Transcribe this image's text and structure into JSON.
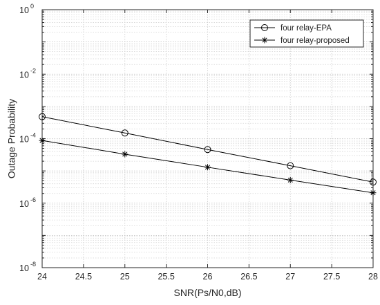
{
  "chart_data": {
    "type": "line",
    "title": "",
    "xlabel": "SNR(Ps/N0,dB)",
    "ylabel": "Outage Probability",
    "xlim": [
      24,
      28
    ],
    "ylim": [
      1e-08,
      1
    ],
    "yscale": "log",
    "grid": true,
    "minor_grid": true,
    "legend_position": "top-right",
    "x_ticks": [
      "24",
      "24.5",
      "25",
      "25.5",
      "26",
      "26.5",
      "27",
      "27.5",
      "28"
    ],
    "y_ticks": [
      {
        "base": "10",
        "exp": "-8"
      },
      {
        "base": "10",
        "exp": "-6"
      },
      {
        "base": "10",
        "exp": "-4"
      },
      {
        "base": "10",
        "exp": "-2"
      },
      {
        "base": "10",
        "exp": "0"
      }
    ],
    "x": [
      24,
      25,
      26,
      27,
      28
    ],
    "series": [
      {
        "name": "four relay-EPA",
        "marker": "circle",
        "color": "#000000",
        "values": [
          0.00048,
          0.00015,
          4.6e-05,
          1.45e-05,
          4.5e-06
        ]
      },
      {
        "name": "four relay-proposed",
        "marker": "asterisk",
        "color": "#000000",
        "values": [
          8.8e-05,
          3.3e-05,
          1.3e-05,
          5.2e-06,
          2.1e-06
        ]
      }
    ]
  }
}
